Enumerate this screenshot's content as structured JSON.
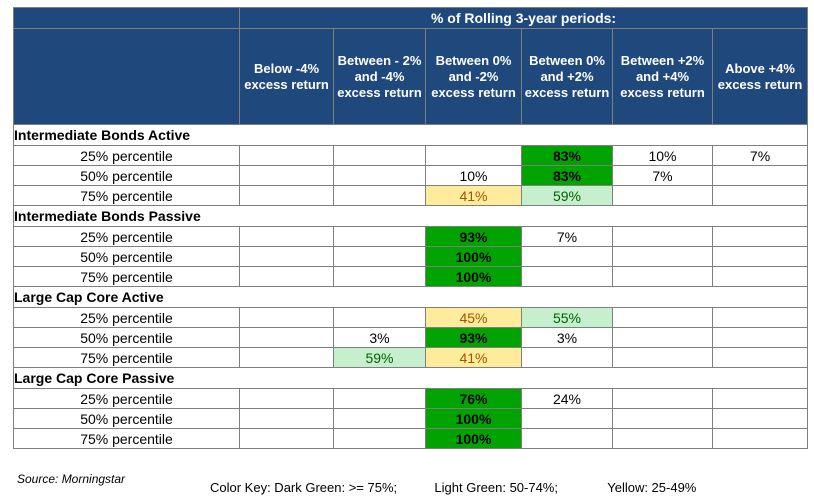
{
  "chart_data": {
    "type": "table",
    "title": "% of Rolling 3-year periods:",
    "columns": [
      "Below -4% excess return",
      "Between - 2% and -4% excess return",
      "Between 0% and  -2% excess return",
      "Between 0% and +2% excess return",
      "Between +2% and +4% excess return",
      "Above +4% excess return"
    ],
    "groups": [
      {
        "name": "Intermediate Bonds Active",
        "rows": [
          {
            "label": "25% percentile",
            "cells": [
              {
                "text": "",
                "c": ""
              },
              {
                "text": "",
                "c": ""
              },
              {
                "text": "",
                "c": ""
              },
              {
                "text": "83%",
                "c": "dark"
              },
              {
                "text": "10%",
                "c": ""
              },
              {
                "text": "7%",
                "c": ""
              }
            ]
          },
          {
            "label": "50% percentile",
            "cells": [
              {
                "text": "",
                "c": ""
              },
              {
                "text": "",
                "c": ""
              },
              {
                "text": "10%",
                "c": ""
              },
              {
                "text": "83%",
                "c": "dark"
              },
              {
                "text": "7%",
                "c": ""
              },
              {
                "text": "",
                "c": ""
              }
            ]
          },
          {
            "label": "75% percentile",
            "cells": [
              {
                "text": "",
                "c": ""
              },
              {
                "text": "",
                "c": ""
              },
              {
                "text": "41%",
                "c": "yellow"
              },
              {
                "text": "59%",
                "c": "light"
              },
              {
                "text": "",
                "c": ""
              },
              {
                "text": "",
                "c": ""
              }
            ]
          }
        ]
      },
      {
        "name": "Intermediate Bonds Passive",
        "rows": [
          {
            "label": "25% percentile",
            "cells": [
              {
                "text": "",
                "c": ""
              },
              {
                "text": "",
                "c": ""
              },
              {
                "text": "93%",
                "c": "dark"
              },
              {
                "text": "7%",
                "c": ""
              },
              {
                "text": "",
                "c": ""
              },
              {
                "text": "",
                "c": ""
              }
            ]
          },
          {
            "label": "50% percentile",
            "cells": [
              {
                "text": "",
                "c": ""
              },
              {
                "text": "",
                "c": ""
              },
              {
                "text": "100%",
                "c": "dark"
              },
              {
                "text": "",
                "c": ""
              },
              {
                "text": "",
                "c": ""
              },
              {
                "text": "",
                "c": ""
              }
            ]
          },
          {
            "label": "75% percentile",
            "cells": [
              {
                "text": "",
                "c": ""
              },
              {
                "text": "",
                "c": ""
              },
              {
                "text": "100%",
                "c": "dark"
              },
              {
                "text": "",
                "c": ""
              },
              {
                "text": "",
                "c": ""
              },
              {
                "text": "",
                "c": ""
              }
            ]
          }
        ]
      },
      {
        "name": "Large Cap Core Active",
        "rows": [
          {
            "label": "25% percentile",
            "cells": [
              {
                "text": "",
                "c": ""
              },
              {
                "text": "",
                "c": ""
              },
              {
                "text": "45%",
                "c": "yellow"
              },
              {
                "text": "55%",
                "c": "light"
              },
              {
                "text": "",
                "c": ""
              },
              {
                "text": "",
                "c": ""
              }
            ]
          },
          {
            "label": "50% percentile",
            "cells": [
              {
                "text": "",
                "c": ""
              },
              {
                "text": "3%",
                "c": ""
              },
              {
                "text": "93%",
                "c": "dark"
              },
              {
                "text": "3%",
                "c": ""
              },
              {
                "text": "",
                "c": ""
              },
              {
                "text": "",
                "c": ""
              }
            ]
          },
          {
            "label": "75% percentile",
            "cells": [
              {
                "text": "",
                "c": ""
              },
              {
                "text": "59%",
                "c": "light"
              },
              {
                "text": "41%",
                "c": "yellow"
              },
              {
                "text": "",
                "c": ""
              },
              {
                "text": "",
                "c": ""
              },
              {
                "text": "",
                "c": ""
              }
            ]
          }
        ]
      },
      {
        "name": "Large Cap Core Passive",
        "rows": [
          {
            "label": "25% percentile",
            "cells": [
              {
                "text": "",
                "c": ""
              },
              {
                "text": "",
                "c": ""
              },
              {
                "text": "76%",
                "c": "dark"
              },
              {
                "text": "24%",
                "c": ""
              },
              {
                "text": "",
                "c": ""
              },
              {
                "text": "",
                "c": ""
              }
            ]
          },
          {
            "label": "50% percentile",
            "cells": [
              {
                "text": "",
                "c": ""
              },
              {
                "text": "",
                "c": ""
              },
              {
                "text": "100%",
                "c": "dark"
              },
              {
                "text": "",
                "c": ""
              },
              {
                "text": "",
                "c": ""
              },
              {
                "text": "",
                "c": ""
              }
            ]
          },
          {
            "label": "75% percentile",
            "cells": [
              {
                "text": "",
                "c": ""
              },
              {
                "text": "",
                "c": ""
              },
              {
                "text": "100%",
                "c": "dark"
              },
              {
                "text": "",
                "c": ""
              },
              {
                "text": "",
                "c": ""
              },
              {
                "text": "",
                "c": ""
              }
            ]
          }
        ]
      }
    ],
    "colors": {
      "header": "#1f497d",
      "dark_green": "#00a300",
      "light_green": "#c6efce",
      "yellow": "#ffeb9c"
    }
  },
  "footer": {
    "source": "Source: Morningstar",
    "key_dark": "Color Key: Dark Green: >= 75%;",
    "key_light": "Light Green:  50-74%;",
    "key_yellow": "Yellow:  25-49%"
  }
}
